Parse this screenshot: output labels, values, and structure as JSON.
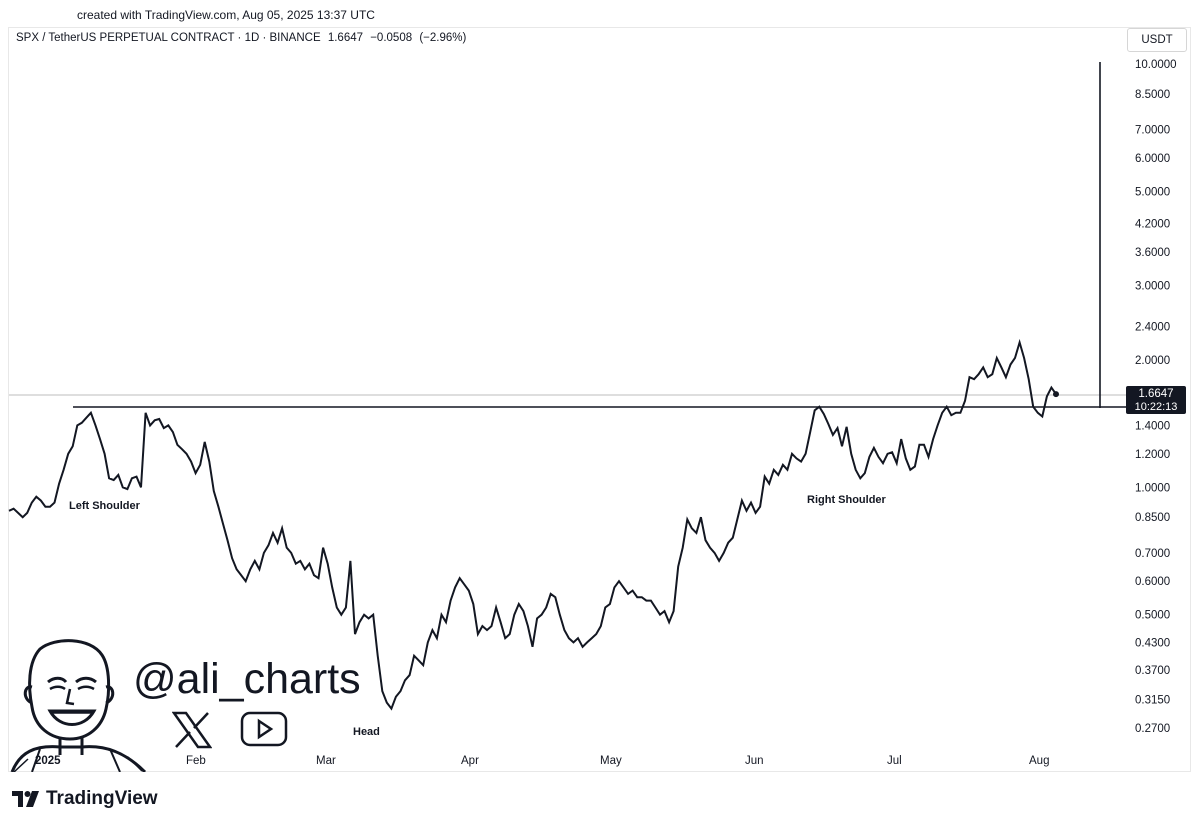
{
  "header": {
    "created": "created with TradingView.com, Aug 05, 2025 13:37 UTC",
    "symbol": "SPX / TetherUS PERPETUAL CONTRACT · 1D · BINANCE",
    "price": "1.6647",
    "change": "−0.0508",
    "change_pct": "(−2.96%)",
    "currency": "USDT"
  },
  "price_tag": {
    "price": "1.6647",
    "countdown": "10:22:13"
  },
  "annotations": {
    "left_shoulder": "Left Shoulder",
    "head": "Head",
    "right_shoulder": "Right Shoulder"
  },
  "branding": {
    "handle": "@ali_charts",
    "footer": "TradingView",
    "icons": [
      "x-logo-icon",
      "youtube-icon",
      "avatar-cartoon",
      "tradingview-logo-icon"
    ]
  },
  "chart_data": {
    "type": "line",
    "y_scale": "log",
    "y_ticks": [
      "10.0000",
      "8.5000",
      "7.0000",
      "6.0000",
      "5.0000",
      "4.2000",
      "3.6000",
      "3.0000",
      "2.4000",
      "2.0000",
      "1.4000",
      "1.2000",
      "1.0000",
      "0.8500",
      "0.7000",
      "0.6000",
      "0.5000",
      "0.4300",
      "0.3700",
      "0.3150",
      "0.2700"
    ],
    "x_ticks": [
      "2025",
      "Feb",
      "Mar",
      "Apr",
      "May",
      "Jun",
      "Jul",
      "Aug"
    ],
    "neckline": 1.5,
    "current_price": 1.6647,
    "target_price": 10.0,
    "series": [
      {
        "values": [
          0.88,
          0.89,
          0.87,
          0.85,
          0.87,
          0.92,
          0.95,
          0.93,
          0.9,
          0.9,
          0.92,
          1.02,
          1.1,
          1.2,
          1.25,
          1.4,
          1.42,
          1.46,
          1.5,
          1.4,
          1.3,
          1.2,
          1.05,
          1.04,
          1.07,
          1.0,
          0.99,
          1.05,
          1.06,
          1.0,
          1.5,
          1.4,
          1.44,
          1.45,
          1.38,
          1.4,
          1.35,
          1.26,
          1.23,
          1.2,
          1.15,
          1.08,
          1.13,
          1.28,
          1.15,
          0.98,
          0.9,
          0.82,
          0.75,
          0.68,
          0.64,
          0.62,
          0.6,
          0.64,
          0.67,
          0.64,
          0.7,
          0.73,
          0.78,
          0.74,
          0.8,
          0.72,
          0.7,
          0.66,
          0.67,
          0.64,
          0.66,
          0.62,
          0.61,
          0.72,
          0.66,
          0.58,
          0.52,
          0.5,
          0.52,
          0.67,
          0.45,
          0.48,
          0.5,
          0.49,
          0.5,
          0.4,
          0.33,
          0.31,
          0.3,
          0.32,
          0.33,
          0.35,
          0.36,
          0.4,
          0.39,
          0.38,
          0.43,
          0.46,
          0.44,
          0.5,
          0.48,
          0.54,
          0.58,
          0.61,
          0.59,
          0.57,
          0.53,
          0.45,
          0.47,
          0.46,
          0.47,
          0.52,
          0.48,
          0.44,
          0.45,
          0.5,
          0.53,
          0.51,
          0.47,
          0.42,
          0.49,
          0.5,
          0.52,
          0.56,
          0.55,
          0.5,
          0.46,
          0.44,
          0.43,
          0.44,
          0.42,
          0.43,
          0.44,
          0.45,
          0.47,
          0.52,
          0.53,
          0.58,
          0.6,
          0.58,
          0.56,
          0.57,
          0.55,
          0.55,
          0.54,
          0.54,
          0.52,
          0.5,
          0.51,
          0.48,
          0.51,
          0.65,
          0.72,
          0.84,
          0.8,
          0.78,
          0.85,
          0.75,
          0.72,
          0.7,
          0.67,
          0.7,
          0.74,
          0.76,
          0.84,
          0.93,
          0.88,
          0.92,
          0.87,
          0.9,
          1.06,
          1.02,
          1.1,
          1.07,
          1.13,
          1.1,
          1.2,
          1.17,
          1.15,
          1.2,
          1.35,
          1.52,
          1.55,
          1.49,
          1.41,
          1.33,
          1.38,
          1.25,
          1.39,
          1.2,
          1.1,
          1.05,
          1.08,
          1.18,
          1.24,
          1.18,
          1.14,
          1.2,
          1.21,
          1.14,
          1.3,
          1.17,
          1.1,
          1.12,
          1.26,
          1.26,
          1.18,
          1.3,
          1.4,
          1.5,
          1.55,
          1.48,
          1.5,
          1.5,
          1.6,
          1.82,
          1.8,
          1.85,
          1.92,
          1.82,
          1.85,
          2.02,
          1.92,
          1.82,
          1.95,
          2.02,
          2.2,
          2.02,
          1.8,
          1.55,
          1.5,
          1.47,
          1.64,
          1.72,
          1.66
        ]
      }
    ]
  }
}
